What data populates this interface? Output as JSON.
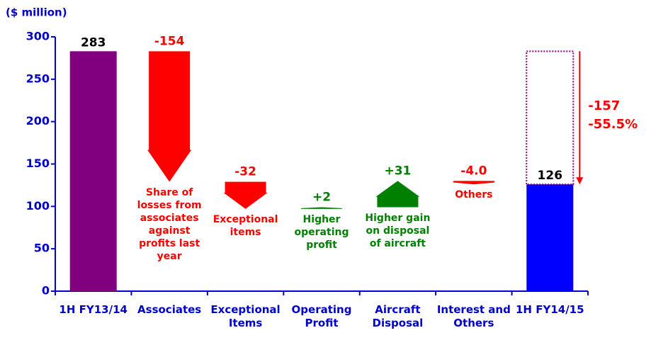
{
  "chart_data": {
    "type": "waterfall",
    "y_label": "($ million)",
    "categories": [
      "1H FY13/14",
      "Associates",
      "Exceptional Items",
      "Operating Profit",
      "Aircraft Disposal",
      "Interest and Others",
      "1H FY14/15"
    ],
    "values": [
      283,
      -154,
      -32,
      2,
      31,
      -4.0,
      126
    ],
    "value_labels": [
      "283",
      "-154",
      "-32",
      "+2",
      "+31",
      "-4.0",
      "126"
    ],
    "kinds": [
      "total",
      "step",
      "step",
      "step",
      "step",
      "step",
      "total"
    ],
    "colors": [
      "#800080",
      "#ff0000",
      "#ff0000",
      "#008000",
      "#008000",
      "#ff0000",
      "#0000ff"
    ],
    "descriptions": [
      null,
      "Share of losses from associates against profits last year",
      "Exceptional items",
      "Higher operating profit",
      "Higher gain on disposal of aircraft",
      "Others",
      null
    ],
    "annotations": [
      "-157",
      "-55.5%"
    ],
    "ylim": [
      0,
      300
    ],
    "yticks": [
      0,
      50,
      100,
      150,
      200,
      250,
      300
    ]
  }
}
